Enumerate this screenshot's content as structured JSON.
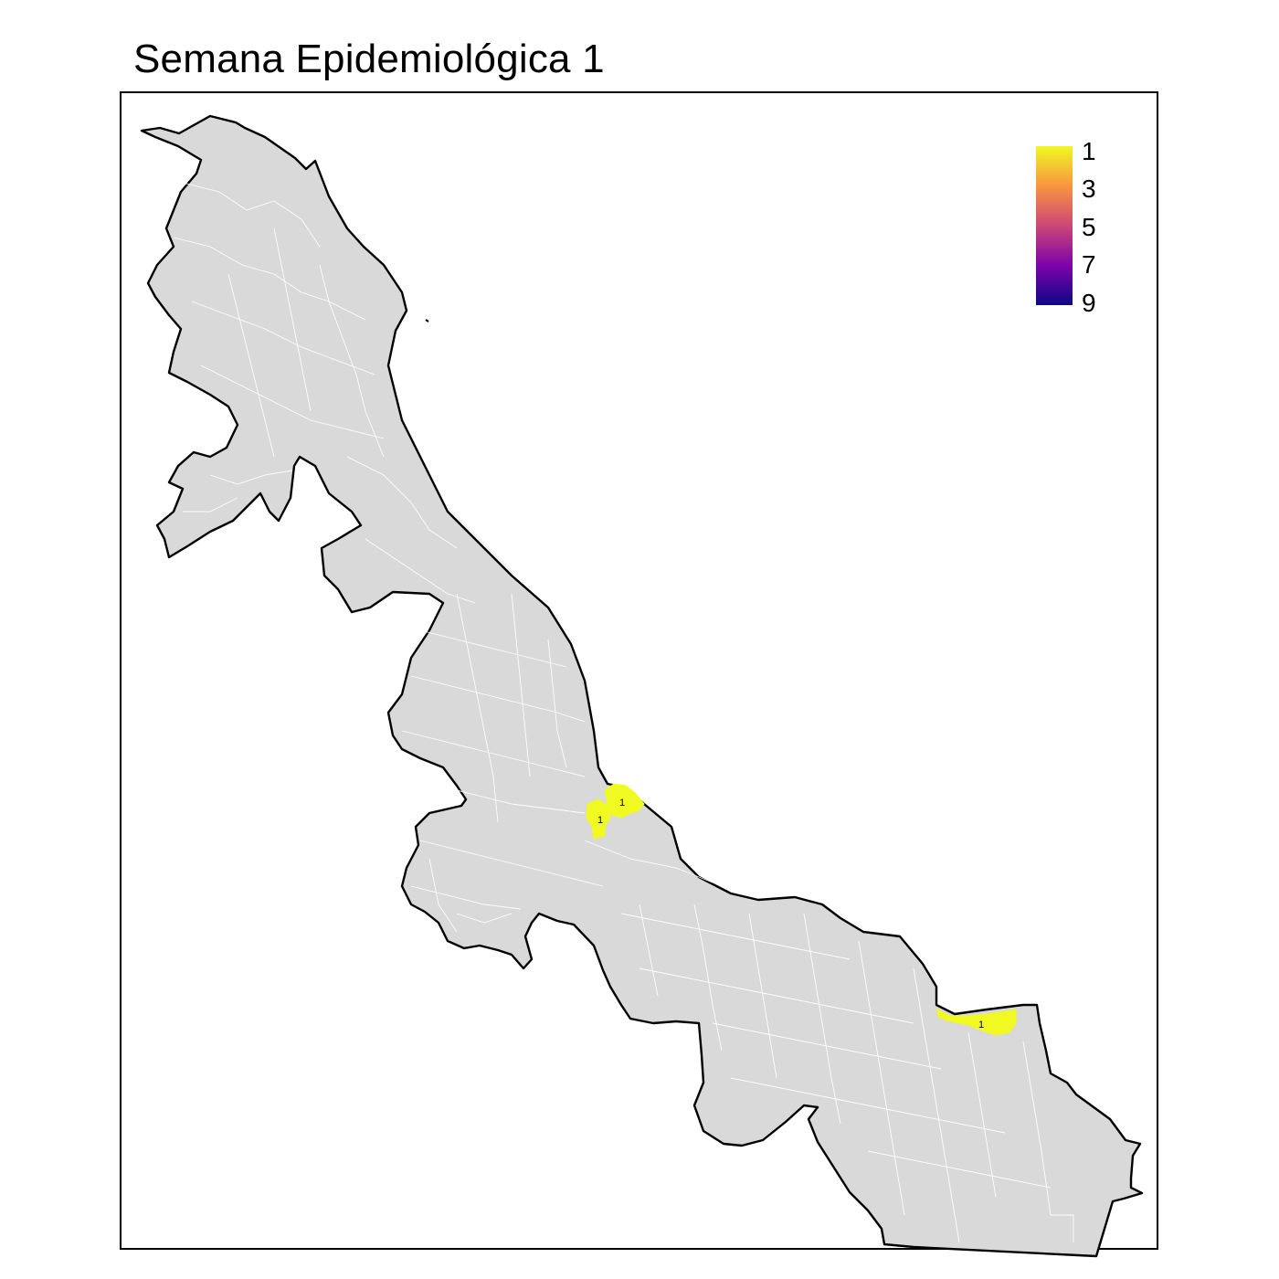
{
  "title": "Semana Epidemiológica 1",
  "legend": {
    "ticks": [
      "1",
      "3",
      "5",
      "7",
      "9"
    ],
    "colors": [
      "#F0F921",
      "#F89540",
      "#CC4778",
      "#7E03A8",
      "#0D0887"
    ]
  },
  "map": {
    "base_fill": "#D9D9D9",
    "border_color": "#000000",
    "internal_border_color": "#FFFFFF",
    "highlight_color": "#F0F921",
    "case_labels": [
      "1",
      "1",
      "1"
    ]
  }
}
